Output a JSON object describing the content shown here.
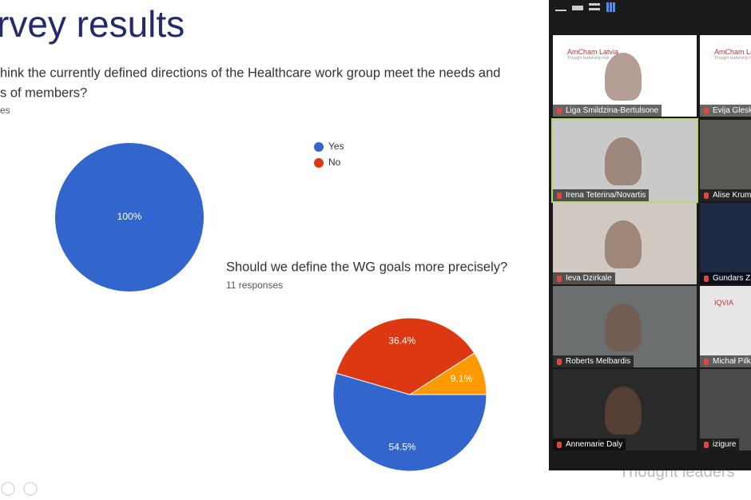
{
  "slide": {
    "title": "rvey results",
    "question1": [
      "hink the currently defined directions of the Healthcare work group meet the needs and",
      "s of members?"
    ],
    "responses1": "es",
    "chart1": {
      "type": "pie",
      "categories": [
        "Yes",
        "No"
      ],
      "values": [
        100,
        0
      ],
      "value_labels": [
        "100%",
        null
      ],
      "colors": [
        "#3366cc",
        "#dc3912"
      ]
    },
    "question2": "Should we define the WG goals more precisely?",
    "responses2": "11 responses",
    "chart2": {
      "type": "pie",
      "values": [
        54.5,
        36.4,
        9.1
      ],
      "value_labels": [
        "54.5%",
        "36.4%",
        "9.1%"
      ],
      "colors": [
        "#3366cc",
        "#dc3912",
        "#ff9900"
      ]
    },
    "background_text": "Thought leaders"
  },
  "gallery": {
    "tiles": [
      {
        "name": "Liga Smildzina-Bertulsone",
        "logo": "AmCham Latvia",
        "logo_sub": "Thought leadership hub"
      },
      {
        "name": "Evija Glesk",
        "logo": "AmCham Latvia",
        "logo_sub": "Thought leadership hub"
      },
      {
        "name": "Irena Teterina/Novartis"
      },
      {
        "name": "Alise Krum"
      },
      {
        "name": "Ieva Dzirkale"
      },
      {
        "name": "Gundars Z"
      },
      {
        "name": "Roberts Melbardis"
      },
      {
        "name": "Michał Pilk",
        "logo": "IQVIA"
      },
      {
        "name": "Annemarie Daly"
      },
      {
        "name": "izigure"
      }
    ]
  }
}
